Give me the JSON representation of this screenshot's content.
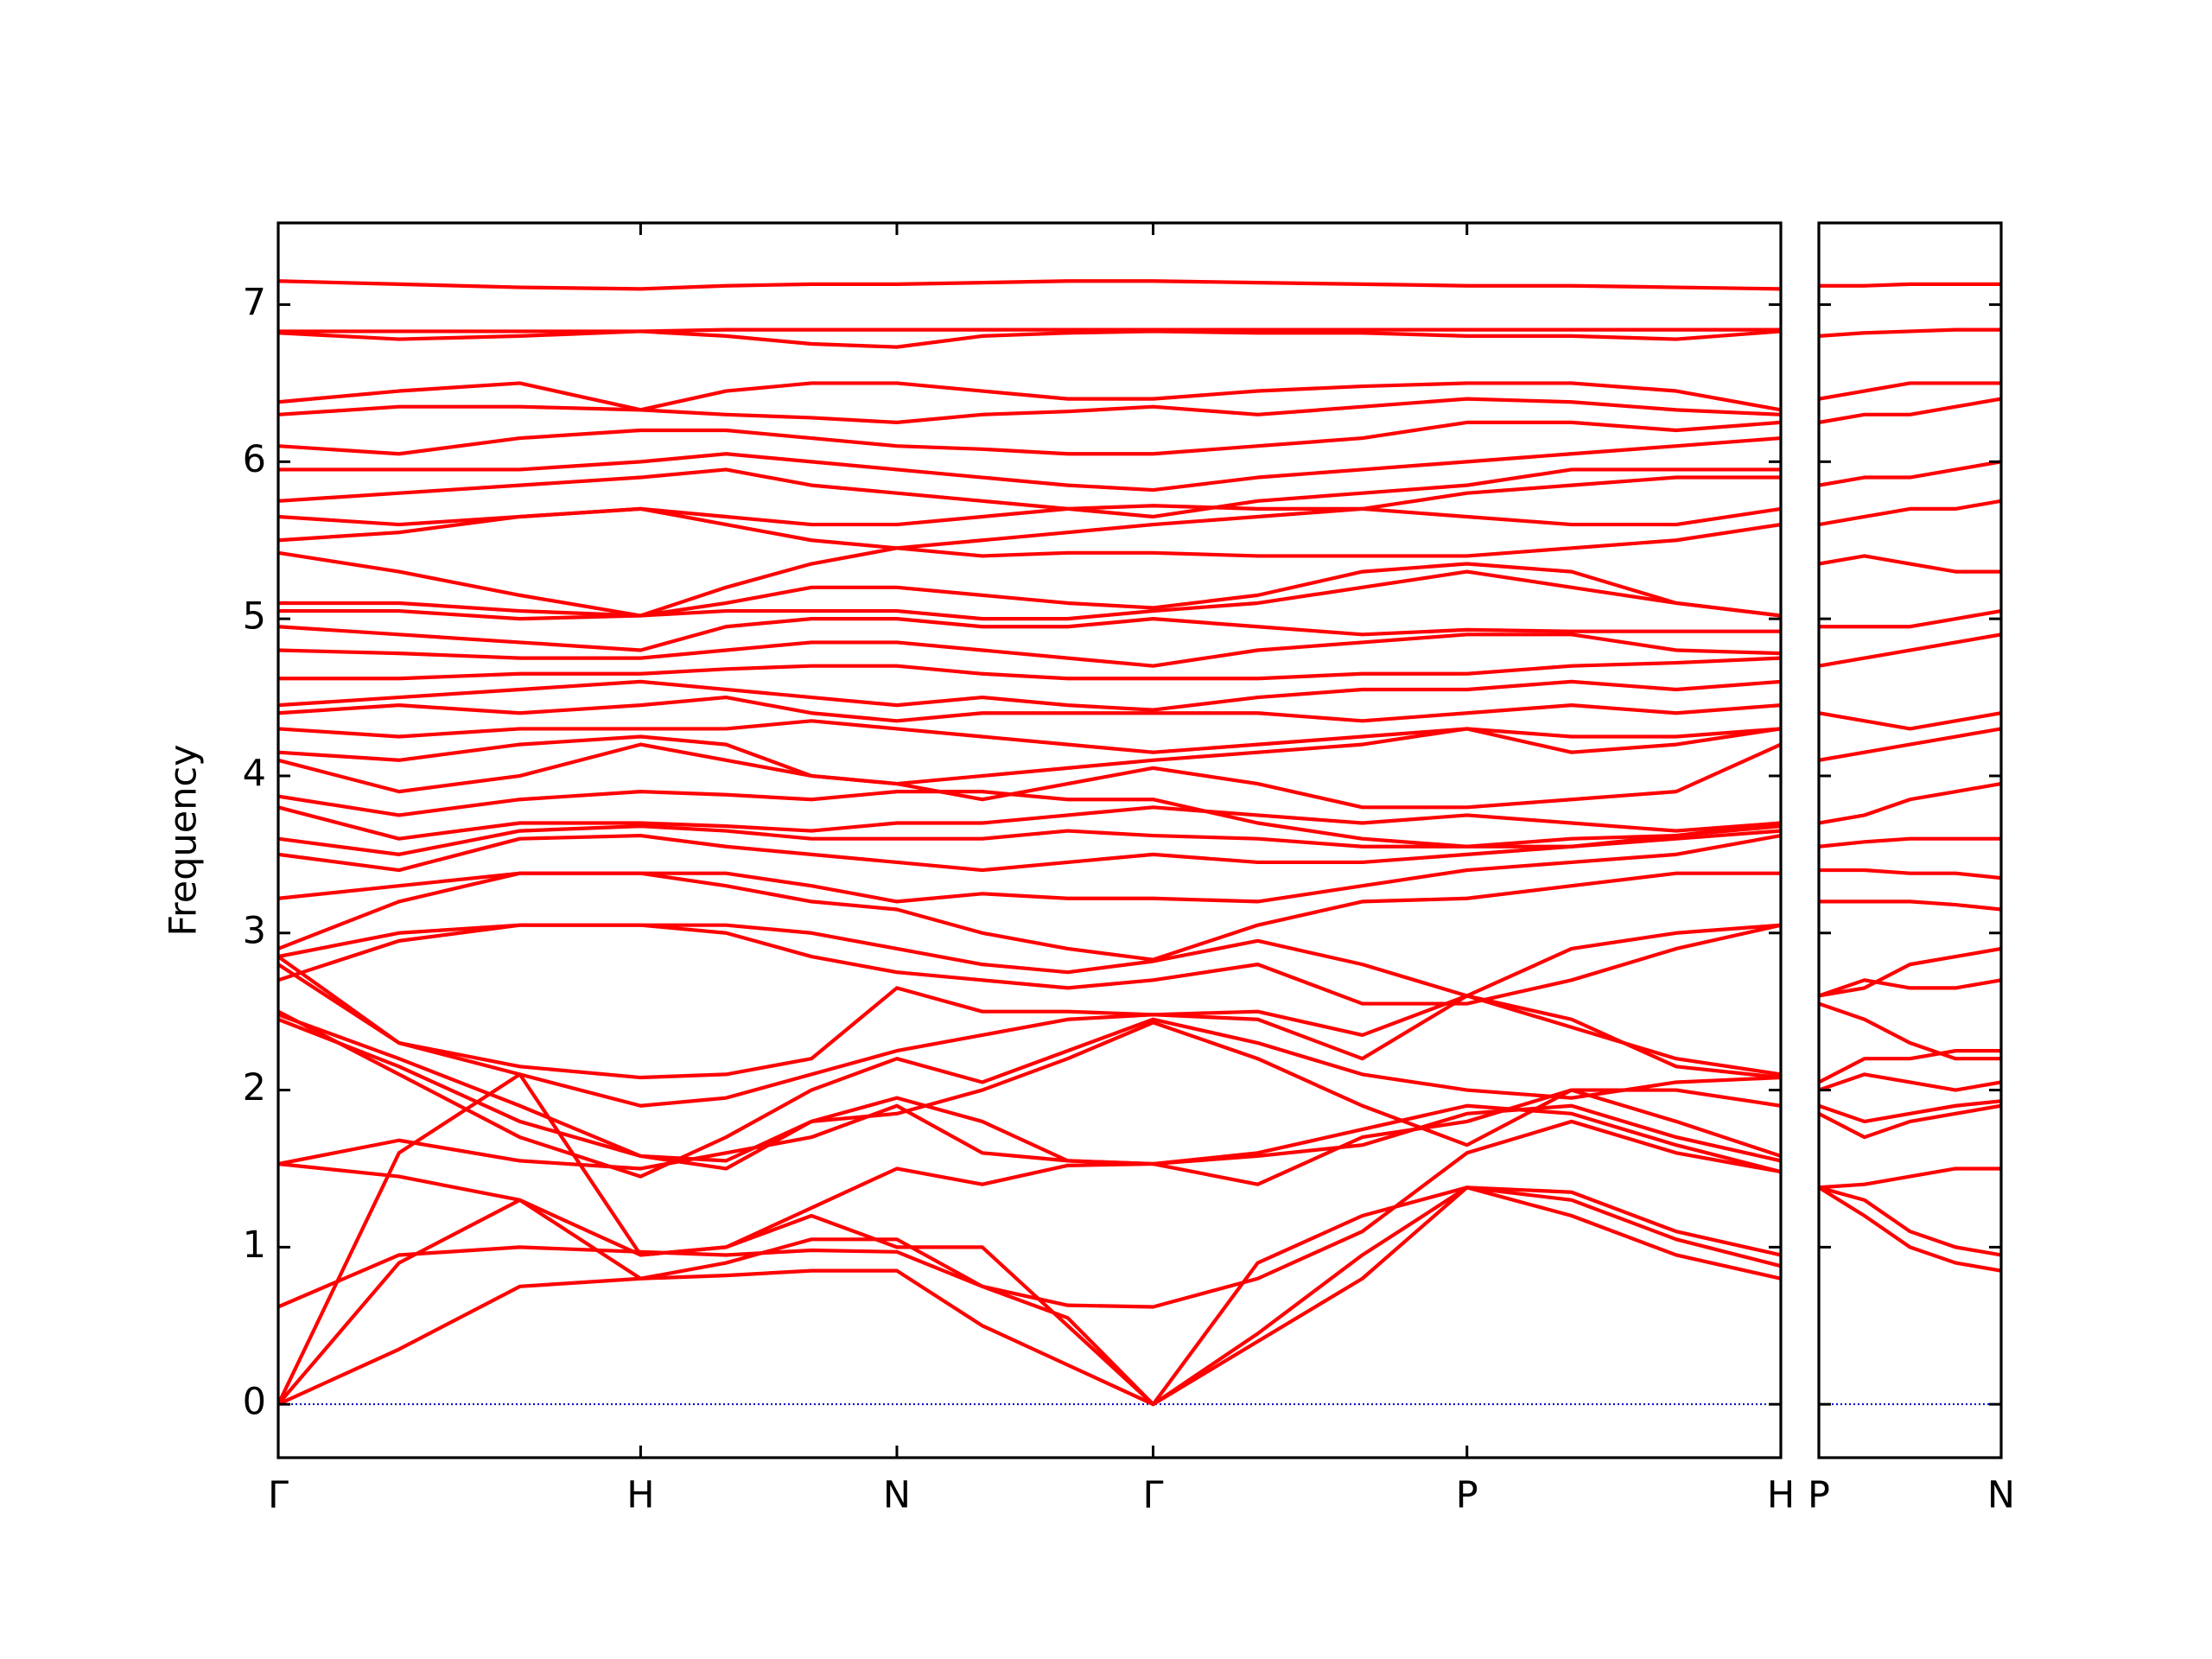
{
  "chart_data": [
    {
      "type": "line",
      "ylabel": "Frequency",
      "color": "#ff0000",
      "ytick_labels": true,
      "xlim": [
        0,
        4.1463
      ],
      "ylim": [
        -0.34,
        7.52
      ],
      "yticks": [
        0,
        1,
        2,
        3,
        4,
        5,
        6,
        7
      ],
      "xticks": [
        {
          "value": 0,
          "label": "Γ"
        },
        {
          "value": 1,
          "label": "H"
        },
        {
          "value": 1.7071,
          "label": "N"
        },
        {
          "value": 2.4142,
          "label": "Γ"
        },
        {
          "value": 3.2802,
          "label": "P"
        },
        {
          "value": 4.1463,
          "label": "H"
        }
      ],
      "hline": 0,
      "hline_color": "#0000cc",
      "x": [
        0,
        0.3333,
        0.6667,
        1,
        1.2357,
        1.4714,
        1.7071,
        1.9428,
        2.1785,
        2.4142,
        2.7029,
        2.9915,
        3.2802,
        3.5689,
        3.8576,
        4.1463
      ],
      "series": [
        {
          "values": [
            0,
            0.35,
            0.75,
            0.8,
            0.82,
            0.85,
            0.85,
            0.5,
            0.25,
            0,
            0.4,
            0.8,
            1.38,
            1.2,
            0.95,
            0.8
          ]
        },
        {
          "values": [
            0,
            0.9,
            1.3,
            0.8,
            0.9,
            1.05,
            1.05,
            0.75,
            0.55,
            0,
            0.45,
            0.95,
            1.38,
            1.3,
            1.05,
            0.88
          ]
        },
        {
          "values": [
            0,
            1.6,
            2.1,
            0.95,
            1.0,
            1.2,
            1.0,
            1.0,
            0.5,
            0,
            0.9,
            1.2,
            1.38,
            1.35,
            1.1,
            0.95
          ]
        },
        {
          "values": [
            0.62,
            0.95,
            1.0,
            0.97,
            0.95,
            0.98,
            0.97,
            0.75,
            0.63,
            0.62,
            0.8,
            1.1,
            1.6,
            1.8,
            1.6,
            1.48
          ]
        },
        {
          "values": [
            1.53,
            1.45,
            1.3,
            0.95,
            1.0,
            1.25,
            1.5,
            1.4,
            1.52,
            1.53,
            1.58,
            1.65,
            1.85,
            1.9,
            1.7,
            1.55
          ]
        },
        {
          "values": [
            1.53,
            1.68,
            1.55,
            1.5,
            1.6,
            1.7,
            1.9,
            1.6,
            1.55,
            1.53,
            1.4,
            1.7,
            1.8,
            2.0,
            1.8,
            1.58
          ]
        },
        {
          "values": [
            2.45,
            2.15,
            1.8,
            1.58,
            1.5,
            1.8,
            1.95,
            1.8,
            1.55,
            1.53,
            1.6,
            1.75,
            1.9,
            1.85,
            1.65,
            1.48
          ]
        },
        {
          "values": [
            2.48,
            2.2,
            1.9,
            1.58,
            1.55,
            1.8,
            1.85,
            2.0,
            2.2,
            2.43,
            2.2,
            1.9,
            1.65,
            2.0,
            2.0,
            1.9
          ]
        },
        {
          "values": [
            2.5,
            2.1,
            1.7,
            1.45,
            1.7,
            2.0,
            2.2,
            2.05,
            2.25,
            2.45,
            2.3,
            2.1,
            2.0,
            1.95,
            2.05,
            2.08
          ]
        },
        {
          "values": [
            2.8,
            2.3,
            2.1,
            1.9,
            1.95,
            2.1,
            2.25,
            2.35,
            2.45,
            2.48,
            2.45,
            2.2,
            2.6,
            2.4,
            2.2,
            2.1
          ]
        },
        {
          "values": [
            2.85,
            2.3,
            2.15,
            2.08,
            2.1,
            2.2,
            2.65,
            2.5,
            2.5,
            2.48,
            2.5,
            2.35,
            2.6,
            2.45,
            2.15,
            2.08
          ]
        },
        {
          "values": [
            2.7,
            2.95,
            3.05,
            3.05,
            3.0,
            2.85,
            2.75,
            2.7,
            2.65,
            2.7,
            2.8,
            2.55,
            2.55,
            2.7,
            2.9,
            3.05
          ]
        },
        {
          "values": [
            2.85,
            3.0,
            3.05,
            3.05,
            3.05,
            3.0,
            2.9,
            2.8,
            2.75,
            2.82,
            2.95,
            2.8,
            2.6,
            2.9,
            3.0,
            3.05
          ]
        },
        {
          "values": [
            2.9,
            3.2,
            3.38,
            3.38,
            3.3,
            3.2,
            3.15,
            3.0,
            2.9,
            2.83,
            3.05,
            3.2,
            3.22,
            3.3,
            3.38,
            3.38
          ]
        },
        {
          "values": [
            3.22,
            3.3,
            3.38,
            3.38,
            3.38,
            3.3,
            3.2,
            3.25,
            3.22,
            3.22,
            3.2,
            3.3,
            3.4,
            3.45,
            3.5,
            3.62
          ]
        },
        {
          "values": [
            3.5,
            3.4,
            3.6,
            3.62,
            3.55,
            3.5,
            3.45,
            3.4,
            3.45,
            3.5,
            3.45,
            3.45,
            3.5,
            3.55,
            3.6,
            3.65
          ]
        },
        {
          "values": [
            3.6,
            3.5,
            3.65,
            3.68,
            3.65,
            3.6,
            3.6,
            3.6,
            3.65,
            3.62,
            3.6,
            3.55,
            3.55,
            3.6,
            3.62,
            3.68
          ]
        },
        {
          "values": [
            3.8,
            3.6,
            3.7,
            3.7,
            3.68,
            3.65,
            3.7,
            3.7,
            3.75,
            3.8,
            3.75,
            3.7,
            3.75,
            3.7,
            3.65,
            3.7
          ]
        },
        {
          "values": [
            3.87,
            3.75,
            3.85,
            3.9,
            3.88,
            3.85,
            3.9,
            3.9,
            3.85,
            3.85,
            3.7,
            3.6,
            3.55,
            3.55,
            3.62,
            3.7
          ]
        },
        {
          "values": [
            4.1,
            3.9,
            4.0,
            4.2,
            4.1,
            4.0,
            3.95,
            3.85,
            3.95,
            4.05,
            3.95,
            3.8,
            3.8,
            3.85,
            3.9,
            4.2
          ]
        },
        {
          "values": [
            4.15,
            4.1,
            4.2,
            4.25,
            4.2,
            4.0,
            3.95,
            4.0,
            4.05,
            4.1,
            4.15,
            4.2,
            4.3,
            4.15,
            4.2,
            4.3
          ]
        },
        {
          "values": [
            4.3,
            4.25,
            4.3,
            4.3,
            4.3,
            4.35,
            4.3,
            4.25,
            4.2,
            4.15,
            4.2,
            4.25,
            4.3,
            4.25,
            4.25,
            4.3
          ]
        },
        {
          "values": [
            4.4,
            4.45,
            4.4,
            4.45,
            4.5,
            4.4,
            4.35,
            4.4,
            4.4,
            4.4,
            4.4,
            4.35,
            4.4,
            4.45,
            4.4,
            4.45
          ]
        },
        {
          "values": [
            4.45,
            4.5,
            4.55,
            4.6,
            4.55,
            4.5,
            4.45,
            4.5,
            4.45,
            4.42,
            4.5,
            4.55,
            4.55,
            4.6,
            4.55,
            4.6
          ]
        },
        {
          "values": [
            4.62,
            4.62,
            4.65,
            4.65,
            4.68,
            4.7,
            4.7,
            4.65,
            4.62,
            4.62,
            4.62,
            4.65,
            4.65,
            4.7,
            4.72,
            4.75
          ]
        },
        {
          "values": [
            4.8,
            4.78,
            4.75,
            4.75,
            4.8,
            4.85,
            4.85,
            4.8,
            4.75,
            4.7,
            4.8,
            4.85,
            4.9,
            4.9,
            4.8,
            4.78
          ]
        },
        {
          "values": [
            4.95,
            4.9,
            4.85,
            4.8,
            4.95,
            5.0,
            5.0,
            4.95,
            4.95,
            5.0,
            4.95,
            4.9,
            4.93,
            4.92,
            4.92,
            4.92
          ]
        },
        {
          "values": [
            5.05,
            5.05,
            5.0,
            5.02,
            5.05,
            5.05,
            5.05,
            5.0,
            5.0,
            5.05,
            5.1,
            5.2,
            5.3,
            5.2,
            5.1,
            5.02
          ]
        },
        {
          "values": [
            5.1,
            5.1,
            5.05,
            5.02,
            5.1,
            5.2,
            5.2,
            5.15,
            5.1,
            5.07,
            5.15,
            5.3,
            5.35,
            5.3,
            5.1,
            5.02
          ]
        },
        {
          "values": [
            5.42,
            5.3,
            5.15,
            5.02,
            5.2,
            5.35,
            5.45,
            5.4,
            5.42,
            5.42,
            5.4,
            5.4,
            5.4,
            5.45,
            5.5,
            5.6
          ]
        },
        {
          "values": [
            5.5,
            5.55,
            5.65,
            5.7,
            5.6,
            5.5,
            5.45,
            5.5,
            5.55,
            5.6,
            5.65,
            5.7,
            5.65,
            5.6,
            5.6,
            5.7
          ]
        },
        {
          "values": [
            5.65,
            5.6,
            5.65,
            5.7,
            5.65,
            5.6,
            5.6,
            5.65,
            5.7,
            5.72,
            5.7,
            5.7,
            5.8,
            5.85,
            5.9,
            5.9
          ]
        },
        {
          "values": [
            5.75,
            5.8,
            5.85,
            5.9,
            5.95,
            5.85,
            5.8,
            5.75,
            5.7,
            5.65,
            5.75,
            5.8,
            5.85,
            5.95,
            5.95,
            5.95
          ]
        },
        {
          "values": [
            5.95,
            5.95,
            5.95,
            6.0,
            6.05,
            6.0,
            5.95,
            5.9,
            5.85,
            5.82,
            5.9,
            5.95,
            6.0,
            6.05,
            6.1,
            6.15
          ]
        },
        {
          "values": [
            6.1,
            6.05,
            6.15,
            6.2,
            6.2,
            6.15,
            6.1,
            6.08,
            6.05,
            6.05,
            6.1,
            6.15,
            6.25,
            6.25,
            6.2,
            6.25
          ]
        },
        {
          "values": [
            6.3,
            6.35,
            6.35,
            6.33,
            6.3,
            6.28,
            6.25,
            6.3,
            6.32,
            6.35,
            6.3,
            6.35,
            6.4,
            6.38,
            6.33,
            6.3
          ]
        },
        {
          "values": [
            6.38,
            6.45,
            6.5,
            6.33,
            6.45,
            6.5,
            6.5,
            6.45,
            6.4,
            6.4,
            6.45,
            6.48,
            6.5,
            6.5,
            6.45,
            6.33
          ]
        },
        {
          "values": [
            6.82,
            6.78,
            6.8,
            6.83,
            6.8,
            6.75,
            6.73,
            6.8,
            6.82,
            6.83,
            6.82,
            6.82,
            6.8,
            6.8,
            6.78,
            6.83
          ]
        },
        {
          "values": [
            6.83,
            6.83,
            6.83,
            6.83,
            6.84,
            6.84,
            6.84,
            6.84,
            6.84,
            6.84,
            6.84,
            6.84,
            6.84,
            6.84,
            6.84,
            6.84
          ]
        },
        {
          "values": [
            7.15,
            7.13,
            7.11,
            7.1,
            7.12,
            7.13,
            7.13,
            7.14,
            7.15,
            7.15,
            7.14,
            7.13,
            7.12,
            7.12,
            7.11,
            7.1
          ]
        }
      ]
    },
    {
      "type": "line",
      "color": "#ff0000",
      "ytick_labels": false,
      "xlim": [
        4.1463,
        4.6463
      ],
      "ylim": [
        -0.34,
        7.52
      ],
      "yticks": [
        0,
        1,
        2,
        3,
        4,
        5,
        6,
        7
      ],
      "xticks": [
        {
          "value": 4.1463,
          "label": "P"
        },
        {
          "value": 4.6463,
          "label": "N"
        }
      ],
      "hline": 0,
      "hline_color": "#0000cc",
      "x": [
        4.1463,
        4.2713,
        4.3963,
        4.5213,
        4.6463
      ],
      "series": [
        {
          "values": [
            1.38,
            1.2,
            1.0,
            0.9,
            0.85
          ]
        },
        {
          "values": [
            1.38,
            1.3,
            1.1,
            1.0,
            0.95
          ]
        },
        {
          "values": [
            1.38,
            1.4,
            1.45,
            1.5,
            1.5
          ]
        },
        {
          "values": [
            1.85,
            1.7,
            1.8,
            1.85,
            1.9
          ]
        },
        {
          "values": [
            1.9,
            1.8,
            1.85,
            1.9,
            1.93
          ]
        },
        {
          "values": [
            2.0,
            2.1,
            2.05,
            2.0,
            2.05
          ]
        },
        {
          "values": [
            2.05,
            2.2,
            2.2,
            2.25,
            2.25
          ]
        },
        {
          "values": [
            2.55,
            2.45,
            2.3,
            2.2,
            2.2
          ]
        },
        {
          "values": [
            2.6,
            2.7,
            2.65,
            2.65,
            2.7
          ]
        },
        {
          "values": [
            2.6,
            2.65,
            2.8,
            2.85,
            2.9
          ]
        },
        {
          "values": [
            3.2,
            3.2,
            3.2,
            3.18,
            3.15
          ]
        },
        {
          "values": [
            3.4,
            3.4,
            3.38,
            3.38,
            3.35
          ]
        },
        {
          "values": [
            3.55,
            3.58,
            3.6,
            3.6,
            3.6
          ]
        },
        {
          "values": [
            3.7,
            3.75,
            3.85,
            3.9,
            3.95
          ]
        },
        {
          "values": [
            4.1,
            4.15,
            4.2,
            4.25,
            4.3
          ]
        },
        {
          "values": [
            4.4,
            4.35,
            4.3,
            4.35,
            4.4
          ]
        },
        {
          "values": [
            4.7,
            4.75,
            4.8,
            4.85,
            4.9
          ]
        },
        {
          "values": [
            4.95,
            4.95,
            4.95,
            5.0,
            5.05
          ]
        },
        {
          "values": [
            5.35,
            5.4,
            5.35,
            5.3,
            5.3
          ]
        },
        {
          "values": [
            5.6,
            5.65,
            5.7,
            5.7,
            5.75
          ]
        },
        {
          "values": [
            5.85,
            5.9,
            5.9,
            5.95,
            6.0
          ]
        },
        {
          "values": [
            6.25,
            6.3,
            6.3,
            6.35,
            6.4
          ]
        },
        {
          "values": [
            6.4,
            6.45,
            6.5,
            6.5,
            6.5
          ]
        },
        {
          "values": [
            6.8,
            6.82,
            6.83,
            6.84,
            6.84
          ]
        },
        {
          "values": [
            7.12,
            7.12,
            7.13,
            7.13,
            7.13
          ]
        }
      ]
    }
  ]
}
